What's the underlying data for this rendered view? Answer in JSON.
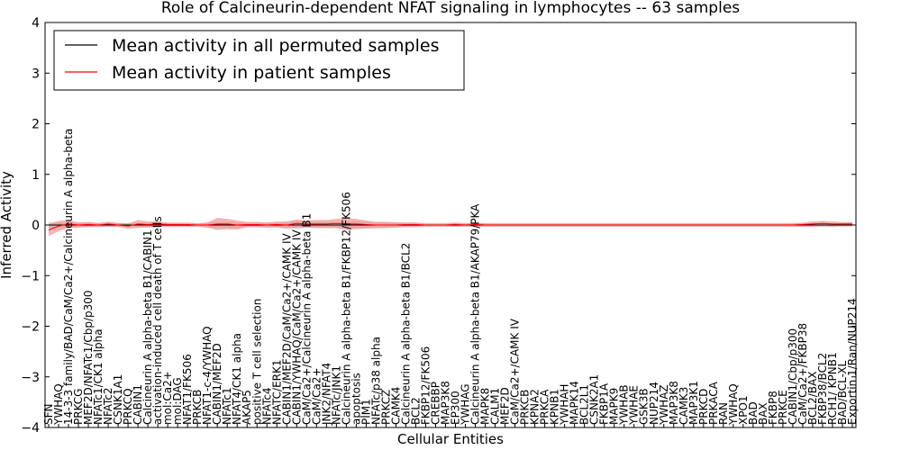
{
  "chart_data": {
    "type": "line",
    "title": "Role of Calcineurin-dependent NFAT signaling in lymphocytes -- 63 samples",
    "xlabel": "Cellular Entities",
    "ylabel": "Inferred Activity",
    "ylim": [
      -4,
      4
    ],
    "yticks": [
      -4,
      -3,
      -2,
      -1,
      0,
      1,
      2,
      3,
      4
    ],
    "grid": false,
    "legend": {
      "placement": "top-left",
      "entries": [
        {
          "label": "Mean activity in all permuted samples",
          "color": "#000000"
        },
        {
          "label": "Mean activity in patient samples",
          "color": "#ff0000"
        }
      ]
    },
    "categories": [
      "SFN",
      "YWHAQ",
      "14-3-3 family/BAD/CaM/Ca2+/Calcineurin A alpha-beta",
      "PRKCG",
      "MEF2D/NFATc1/Cbp/p300",
      "NFATc1/CK1 alpha",
      "NFATc2",
      "CSNK1A1",
      "PRKCQ",
      "CABIN1",
      "Calcineurin A alpha-beta B1/CABIN1",
      "activation-induced cell death of T cells",
      "mol:Ca2+",
      "mol:DAG",
      "NFAT1/FK506",
      "PRKCB",
      "NFAT1-c-4/YWHAQ",
      "CABIN1/MEF2D",
      "NFATc1",
      "NFAT4/CK1 alpha",
      "AKAP5",
      "positive T cell selection",
      "NFATc4",
      "NFATC/ERK1",
      "CABIN1/MEF2D/CaM/Ca2+/CAMK IV",
      "CABIN1/YWHAQ/CaM/Ca2+/CAMK IV",
      "CaM/Ca2+/Calcineurin A alpha-beta B1",
      "CaM/Ca2+",
      "JNK2/NFAT4",
      "NFATc/JNK1",
      "Calcineurin A alpha-beta B1/FKBP12/FK506",
      "apoptosis",
      "PIM1",
      "NFATc/p38 alpha",
      "PRKCZ",
      "CAMK4",
      "Calcineurin A alpha-beta B1/BCL2",
      "BCL2",
      "FKBP12/FK506",
      "CREBBP",
      "MAP3K8",
      "EP300",
      "YWHAG",
      "Calcineurin A alpha-beta B1/AKAP79/PKA",
      "MAPK8",
      "CALM1",
      "MEF2D",
      "CaM/Ca2+/CAMK IV",
      "PRKCB",
      "KPNA2",
      "PRKCA",
      "KPNB1",
      "YWHAH",
      "MAPK14",
      "BCL2L1",
      "CSNK2A1",
      "FKBP1A",
      "MAPK9",
      "YWHAB",
      "YWHAE",
      "GSK3B",
      "NUP214",
      "YWHAZ",
      "MAP3K8",
      "CAMK3",
      "MAP3K1",
      "PRKCD",
      "PRKACA",
      "RAN",
      "YWHAQ",
      "XPO1",
      "BAD",
      "BAX",
      "FKBP8",
      "PRKCE",
      "CABIN1/Cbp/p300",
      "CaM/Ca2+/FKBP38",
      "BCL2/BAX",
      "FKBP38/BCL2",
      "RCH1/ KPNB1",
      "BAD/BCL-XL",
      "Exportin 1/Ran/NUP214"
    ],
    "series": [
      {
        "name": "Mean activity in all permuted samples",
        "color": "#000000",
        "band_color": "#b0b0b0",
        "values": [
          0.0,
          0.0,
          0.0,
          0.0,
          0.0,
          0.0,
          0.0,
          0.0,
          0.0,
          0.0,
          0.0,
          0.0,
          0.0,
          0.0,
          0.0,
          0.0,
          0.0,
          0.0,
          0.0,
          0.0,
          0.0,
          0.0,
          0.0,
          0.0,
          0.0,
          0.0,
          0.0,
          0.0,
          0.0,
          0.0,
          0.0,
          0.0,
          0.0,
          0.0,
          0.0,
          0.0,
          0.0,
          0.0,
          0.0,
          0.0,
          0.0,
          0.0,
          0.0,
          0.0,
          0.0,
          0.0,
          0.0,
          0.0,
          0.0,
          0.0,
          0.0,
          0.0,
          0.0,
          0.0,
          0.0,
          0.0,
          0.0,
          0.0,
          0.0,
          0.0,
          0.0,
          0.0,
          0.0,
          0.0,
          0.0,
          0.0,
          0.0,
          0.0,
          0.0,
          0.0,
          0.0,
          0.0,
          0.0,
          0.0,
          0.0,
          0.0,
          0.0,
          0.0,
          0.0,
          0.0,
          0.0,
          0.0
        ],
        "band": [
          0.06,
          0.05,
          0.05,
          0.05,
          0.05,
          0.04,
          0.04,
          0.04,
          0.04,
          0.04,
          0.05,
          0.05,
          0.04,
          0.04,
          0.04,
          0.04,
          0.05,
          0.06,
          0.06,
          0.06,
          0.05,
          0.05,
          0.05,
          0.05,
          0.08,
          0.08,
          0.06,
          0.06,
          0.06,
          0.06,
          0.07,
          0.07,
          0.06,
          0.06,
          0.06,
          0.06,
          0.05,
          0.05,
          0.04,
          0.04,
          0.04,
          0.04,
          0.04,
          0.04,
          0.04,
          0.04,
          0.04,
          0.04,
          0.04,
          0.04,
          0.04,
          0.04,
          0.04,
          0.04,
          0.04,
          0.04,
          0.04,
          0.04,
          0.04,
          0.04,
          0.04,
          0.04,
          0.04,
          0.04,
          0.04,
          0.04,
          0.04,
          0.04,
          0.04,
          0.04,
          0.04,
          0.04,
          0.04,
          0.04,
          0.04,
          0.04,
          0.04,
          0.04,
          0.04,
          0.04,
          0.04,
          0.04
        ]
      },
      {
        "name": "Mean activity in patient samples",
        "color": "#ff0000",
        "band_color": "#f08080",
        "values": [
          -0.1,
          -0.02,
          0.02,
          0.0,
          0.01,
          0.0,
          0.02,
          0.0,
          -0.02,
          0.02,
          0.01,
          0.02,
          0.01,
          0.01,
          0.01,
          0.0,
          0.0,
          0.02,
          0.02,
          0.0,
          0.01,
          0.01,
          0.0,
          0.01,
          0.0,
          0.03,
          0.02,
          0.02,
          0.02,
          0.03,
          0.02,
          0.02,
          0.01,
          0.0,
          0.0,
          0.0,
          0.01,
          0.01,
          0.0,
          0.0,
          0.0,
          0.01,
          0.0,
          0.01,
          0.0,
          0.0,
          0.0,
          0.0,
          0.0,
          0.0,
          0.0,
          0.0,
          0.0,
          0.0,
          0.0,
          0.0,
          0.0,
          0.0,
          0.0,
          0.0,
          0.0,
          0.0,
          0.0,
          0.0,
          0.0,
          0.0,
          0.0,
          0.0,
          0.0,
          0.0,
          0.0,
          0.0,
          0.0,
          0.0,
          0.0,
          0.0,
          0.01,
          0.02,
          0.03,
          0.02,
          0.02,
          0.02
        ],
        "band": [
          0.12,
          0.1,
          0.08,
          0.05,
          0.05,
          0.04,
          0.05,
          0.04,
          0.05,
          0.08,
          0.06,
          0.05,
          0.04,
          0.04,
          0.04,
          0.03,
          0.05,
          0.12,
          0.1,
          0.09,
          0.05,
          0.05,
          0.05,
          0.06,
          0.06,
          0.08,
          0.07,
          0.08,
          0.08,
          0.09,
          0.12,
          0.1,
          0.08,
          0.06,
          0.06,
          0.05,
          0.04,
          0.04,
          0.03,
          0.03,
          0.03,
          0.04,
          0.03,
          0.04,
          0.03,
          0.03,
          0.03,
          0.03,
          0.03,
          0.03,
          0.03,
          0.03,
          0.03,
          0.03,
          0.03,
          0.03,
          0.03,
          0.03,
          0.03,
          0.03,
          0.03,
          0.03,
          0.03,
          0.03,
          0.03,
          0.03,
          0.03,
          0.03,
          0.03,
          0.03,
          0.03,
          0.03,
          0.03,
          0.03,
          0.03,
          0.03,
          0.04,
          0.05,
          0.05,
          0.05,
          0.04,
          0.04
        ]
      }
    ]
  }
}
